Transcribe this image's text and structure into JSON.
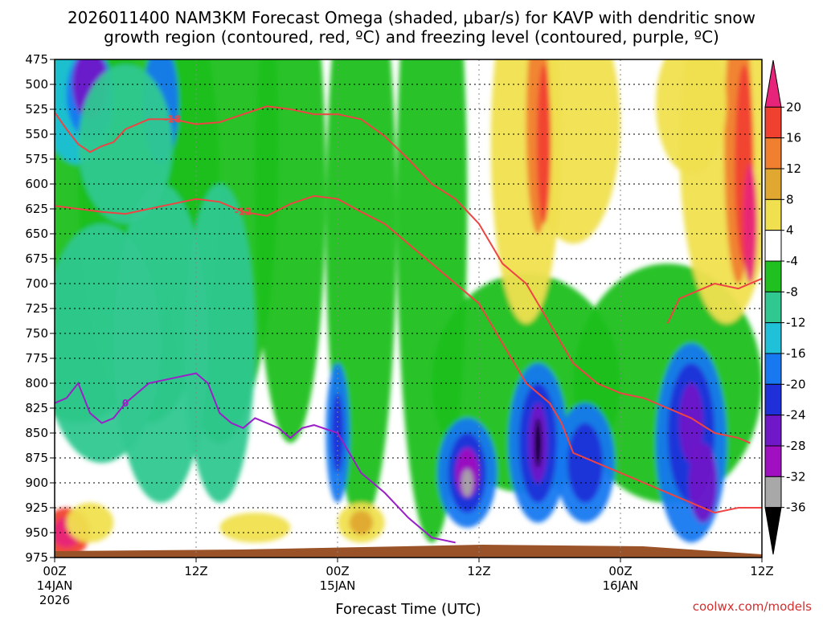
{
  "title_line1": "2026011400 NAM3KM Forecast Omega (shaded, μbar/s) for KAVP with dendritic snow",
  "title_line2": "growth region (contoured, red, ºC) and freezing level (contoured, purple, ºC)",
  "credit": "coolwx.com/models",
  "chart_data": {
    "type": "heatmap",
    "xlabel": "Forecast Time (UTC)",
    "x_ticks": [
      {
        "label": "00Z",
        "date": "14JAN",
        "year": "2026"
      },
      {
        "label": "12Z",
        "date": "",
        "year": ""
      },
      {
        "label": "00Z",
        "date": "15JAN",
        "year": ""
      },
      {
        "label": "12Z",
        "date": "",
        "year": ""
      },
      {
        "label": "00Z",
        "date": "16JAN",
        "year": ""
      },
      {
        "label": "12Z",
        "date": "",
        "year": ""
      }
    ],
    "x_hours": [
      0,
      12,
      24,
      36,
      48,
      60
    ],
    "xlim": [
      0,
      60
    ],
    "y_ticks": [
      "475",
      "500",
      "525",
      "550",
      "575",
      "600",
      "625",
      "650",
      "675",
      "700",
      "725",
      "750",
      "775",
      "800",
      "825",
      "850",
      "875",
      "900",
      "925",
      "950",
      "975"
    ],
    "ylim": [
      975,
      475
    ],
    "grid": true,
    "colorbar": {
      "labels": [
        "20",
        "16",
        "12",
        "8",
        "4",
        "-4",
        "-8",
        "-12",
        "-16",
        "-20",
        "-24",
        "-28",
        "-32",
        "-36"
      ],
      "colors": [
        "#e8247a",
        "#f04030",
        "#f08030",
        "#e0a830",
        "#f0e050",
        "#ffffff",
        "#20c020",
        "#30c890",
        "#20c0d8",
        "#1878f0",
        "#2030d8",
        "#7018c8",
        "#a010c0",
        "#a8a8a8",
        "#000000"
      ]
    },
    "contours": {
      "dgz_red": [
        {
          "label": "-18",
          "points": [
            [
              0,
              528
            ],
            [
              1,
              545
            ],
            [
              2,
              560
            ],
            [
              3,
              568
            ],
            [
              4,
              562
            ],
            [
              5,
              558
            ],
            [
              6,
              545
            ],
            [
              8,
              535
            ],
            [
              10,
              535
            ],
            [
              12,
              540
            ],
            [
              14,
              538
            ],
            [
              16,
              530
            ],
            [
              18,
              522
            ],
            [
              20,
              525
            ],
            [
              22,
              530
            ],
            [
              24,
              530
            ],
            [
              26,
              535
            ],
            [
              28,
              552
            ],
            [
              30,
              575
            ],
            [
              32,
              600
            ],
            [
              34,
              615
            ],
            [
              36,
              640
            ],
            [
              38,
              680
            ],
            [
              40,
              700
            ],
            [
              42,
              740
            ],
            [
              44,
              780
            ],
            [
              46,
              800
            ],
            [
              48,
              810
            ],
            [
              50,
              815
            ],
            [
              52,
              825
            ],
            [
              54,
              835
            ],
            [
              56,
              850
            ],
            [
              58,
              855
            ],
            [
              59,
              860
            ]
          ]
        },
        {
          "label": "-12",
          "points": [
            [
              0,
              622
            ],
            [
              2,
              625
            ],
            [
              4,
              628
            ],
            [
              6,
              630
            ],
            [
              8,
              625
            ],
            [
              10,
              620
            ],
            [
              12,
              615
            ],
            [
              14,
              618
            ],
            [
              16,
              628
            ],
            [
              18,
              632
            ],
            [
              20,
              620
            ],
            [
              22,
              612
            ],
            [
              24,
              615
            ],
            [
              26,
              628
            ],
            [
              28,
              640
            ],
            [
              30,
              660
            ],
            [
              32,
              680
            ],
            [
              34,
              700
            ],
            [
              36,
              720
            ],
            [
              38,
              760
            ],
            [
              40,
              800
            ],
            [
              42,
              820
            ],
            [
              43,
              840
            ],
            [
              44,
              870
            ],
            [
              46,
              880
            ],
            [
              48,
              890
            ],
            [
              50,
              900
            ],
            [
              52,
              910
            ],
            [
              54,
              920
            ],
            [
              56,
              930
            ],
            [
              58,
              925
            ],
            [
              60,
              925
            ]
          ]
        },
        {
          "label": "",
          "points": [
            [
              52,
              740
            ],
            [
              53,
              715
            ],
            [
              54,
              710
            ],
            [
              56,
              700
            ],
            [
              58,
              705
            ],
            [
              60,
              695
            ]
          ]
        }
      ],
      "freezing_purple": [
        {
          "label": "0",
          "points": [
            [
              0,
              820
            ],
            [
              1,
              815
            ],
            [
              2,
              800
            ],
            [
              3,
              830
            ],
            [
              4,
              840
            ],
            [
              5,
              835
            ],
            [
              6,
              820
            ],
            [
              8,
              800
            ],
            [
              10,
              795
            ],
            [
              12,
              790
            ],
            [
              13,
              800
            ],
            [
              14,
              830
            ],
            [
              15,
              840
            ],
            [
              16,
              845
            ],
            [
              17,
              835
            ],
            [
              18,
              840
            ],
            [
              19,
              845
            ],
            [
              20,
              855
            ],
            [
              21,
              845
            ],
            [
              22,
              842
            ],
            [
              24,
              850
            ],
            [
              25,
              870
            ],
            [
              26,
              890
            ],
            [
              28,
              910
            ],
            [
              30,
              935
            ],
            [
              32,
              955
            ],
            [
              34,
              960
            ]
          ]
        }
      ]
    }
  }
}
